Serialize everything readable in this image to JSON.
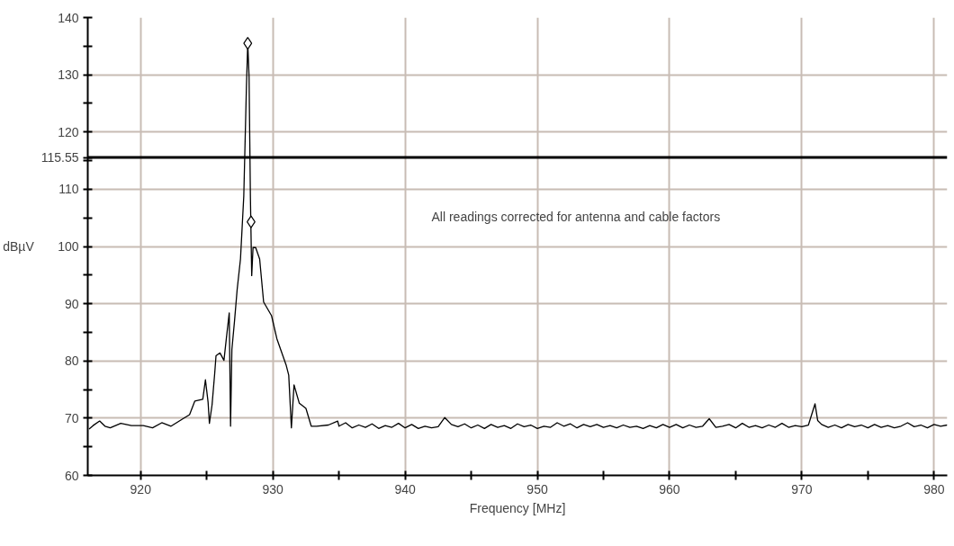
{
  "chart_data": {
    "type": "line",
    "xlabel": "Frequency [MHz]",
    "ylabel": "dBµV",
    "xlim": [
      916,
      981
    ],
    "ylim": [
      60,
      140
    ],
    "xticks": [
      920,
      {
        "value": 925,
        "label": null
      },
      930,
      {
        "value": 935,
        "label": null
      },
      940,
      {
        "value": 945,
        "label": null
      },
      950,
      {
        "value": 955,
        "label": null
      },
      960,
      {
        "value": 965,
        "label": null
      },
      970,
      {
        "value": 975,
        "label": null
      },
      980
    ],
    "yticks": [
      60,
      {
        "value": 65,
        "label": null
      },
      70,
      {
        "value": 75,
        "label": null
      },
      80,
      {
        "value": 85,
        "label": null
      },
      90,
      {
        "value": 95,
        "label": null
      },
      100,
      {
        "value": 105,
        "label": null
      },
      110,
      {
        "value": 115,
        "label": null
      },
      120,
      {
        "value": 125,
        "label": null
      },
      130,
      {
        "value": 135,
        "label": null
      },
      140
    ],
    "grid": true,
    "annotations": [
      "All readings corrected for antenna and cable factors"
    ],
    "ref_lines": [
      {
        "axis": "y",
        "value": 115.55,
        "label": "115.55",
        "color": "#000000"
      }
    ],
    "series": [
      {
        "type": "line",
        "color": "#000000",
        "marker": "none",
        "line_style": "solid",
        "x": [
          916.1,
          916.4,
          916.9,
          917.3,
          917.7,
          918.5,
          919.3,
          920.2,
          920.9,
          921.6,
          922.3,
          923.2,
          923.7,
          924.1,
          924.7,
          924.9,
          925.1,
          925.2,
          925.4,
          925.6,
          925.7,
          926.0,
          926.3,
          926.5,
          926.7,
          926.8,
          926.9,
          927.1,
          927.3,
          927.55,
          927.8,
          928.0,
          928.1,
          928.2,
          928.3,
          928.4,
          928.5,
          928.7,
          929.0,
          929.3,
          929.9,
          930.3,
          931.0,
          931.2,
          931.4,
          931.6,
          932.0,
          932.5,
          932.9,
          933.3,
          934.2,
          934.9,
          935,
          935.5,
          936,
          936.5,
          937,
          937.5,
          938,
          938.5,
          939,
          939.5,
          940,
          940.5,
          941,
          941.5,
          942,
          942.5,
          943,
          943.5,
          944,
          944.5,
          945,
          945.5,
          946,
          946.5,
          947,
          947.5,
          948,
          948.5,
          949,
          949.5,
          950,
          950.5,
          951,
          951.5,
          952,
          952.5,
          953,
          953.5,
          954,
          954.5,
          955,
          955.5,
          956,
          956.5,
          957,
          957.5,
          958,
          958.5,
          959,
          959.5,
          960,
          960.5,
          961,
          961.5,
          962,
          962.5,
          963,
          963.5,
          964,
          964.5,
          965,
          965.5,
          966,
          966.5,
          967,
          967.5,
          968,
          968.5,
          969,
          969.5,
          970,
          970.5,
          971,
          971.2,
          971.5,
          972,
          972.5,
          973,
          973.5,
          974,
          974.5,
          975,
          975.5,
          976,
          976.5,
          977,
          977.5,
          978,
          978.5,
          979,
          979.5,
          980,
          980.5,
          981
        ],
        "values": [
          68.1,
          68.7,
          69.5,
          68.6,
          68.3,
          69.1,
          68.7,
          68.7,
          68.3,
          69.2,
          68.6,
          69.9,
          70.6,
          73.0,
          73.3,
          76.7,
          72.8,
          69.1,
          72.3,
          77.8,
          80.9,
          81.4,
          80.1,
          84.3,
          88.4,
          68.6,
          82.0,
          87.0,
          92.5,
          97.8,
          108.8,
          127.9,
          135.5,
          129.6,
          108.8,
          94.9,
          99.8,
          99.8,
          97.8,
          90.3,
          87.9,
          83.9,
          79.3,
          77.5,
          68.3,
          75.8,
          72.6,
          71.7,
          68.6,
          68.6,
          68.8,
          69.5,
          68.6,
          69.2,
          68.3,
          68.8,
          68.4,
          69.0,
          68.2,
          68.7,
          68.4,
          69.1,
          68.3,
          68.9,
          68.2,
          68.6,
          68.3,
          68.5,
          70.1,
          68.9,
          68.5,
          69.0,
          68.3,
          68.8,
          68.2,
          68.9,
          68.4,
          68.7,
          68.2,
          69.0,
          68.5,
          68.8,
          68.2,
          68.6,
          68.4,
          69.2,
          68.6,
          69.0,
          68.3,
          68.9,
          68.5,
          68.9,
          68.4,
          68.7,
          68.3,
          68.8,
          68.4,
          68.6,
          68.2,
          68.7,
          68.3,
          68.9,
          68.4,
          68.9,
          68.3,
          68.8,
          68.4,
          68.6,
          69.9,
          68.4,
          68.6,
          68.9,
          68.3,
          69.1,
          68.4,
          68.7,
          68.3,
          68.8,
          68.4,
          69.1,
          68.4,
          68.7,
          68.5,
          68.8,
          72.5,
          69.6,
          68.9,
          68.4,
          68.8,
          68.3,
          68.9,
          68.5,
          68.8,
          68.3,
          68.9,
          68.4,
          68.7,
          68.3,
          68.6,
          69.2,
          68.5,
          68.8,
          68.3,
          68.9,
          68.6,
          68.8
        ]
      },
      {
        "type": "scatter",
        "color": "#000000",
        "marker": "diamond",
        "x": [
          928.1,
          928.35
        ],
        "values": [
          135.5,
          104.3
        ]
      }
    ]
  }
}
